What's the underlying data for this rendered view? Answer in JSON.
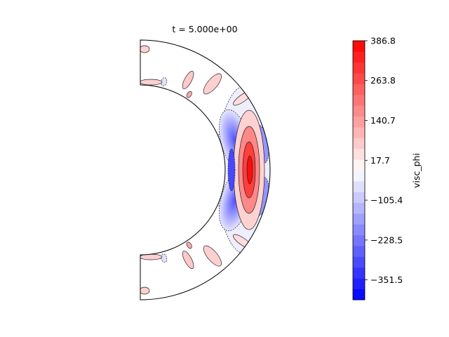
{
  "chart_data": {
    "type": "heatmap",
    "title": "t = 5.000e+00",
    "geometry": "meridional-half-annulus",
    "colorbar": {
      "label": "visc_phi",
      "min": -413.0,
      "max": 386.8,
      "levels": 24,
      "colors": {
        "low": "#0000ff",
        "mid": "#ffffff",
        "high": "#ff0000"
      },
      "ticks": [
        386.8,
        263.8,
        140.7,
        17.7,
        -105.4,
        -228.5,
        -351.5
      ],
      "tick_labels": [
        "386.8",
        "263.8",
        "140.7",
        "17.7",
        "−105.4",
        "−228.5",
        "−351.5"
      ]
    },
    "features": [
      {
        "name": "equatorial-positive-core",
        "theta_deg": 90,
        "value": 386.8
      },
      {
        "name": "equatorial-negative-lobes",
        "theta_deg": 90,
        "value": -300
      },
      {
        "name": "high-latitude-cells",
        "value": 60
      }
    ]
  }
}
